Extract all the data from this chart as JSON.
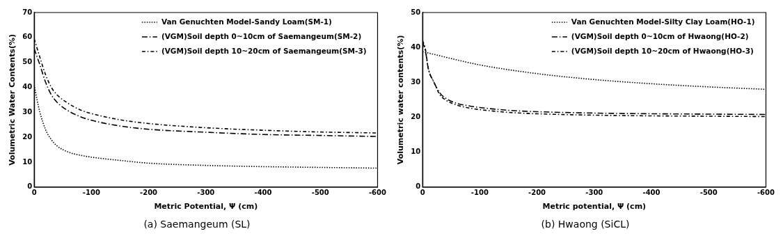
{
  "chart_data": [
    {
      "type": "line",
      "xlabel": "Metric Potential, Ψ (cm)",
      "ylabel": "Volumetric Water Contents(%)",
      "xlim": [
        0,
        -600
      ],
      "xticks": [
        0,
        -100,
        -200,
        -300,
        -400,
        -500,
        -600
      ],
      "ylim": [
        0,
        70
      ],
      "yticks": [
        0,
        10,
        20,
        30,
        40,
        50,
        60,
        70
      ],
      "grid": false,
      "legend": "top right",
      "marker": "none",
      "annotations": [
        "(a) Saemangeum (SL)"
      ],
      "series": [
        {
          "name": "Van Genuchten Model-Sandy Loam(SM-1)",
          "color": "#000000",
          "line_style": "dotted",
          "x": [
            0,
            -5,
            -10,
            -20,
            -30,
            -40,
            -60,
            -80,
            -100,
            -150,
            -200,
            -300,
            -400,
            -500,
            -600
          ],
          "values": [
            41,
            35,
            30,
            23,
            19,
            16.5,
            14,
            12.8,
            12,
            10.7,
            9.6,
            8.7,
            8.2,
            7.9,
            7.6
          ]
        },
        {
          "name": "(VGM)Soil depth 0~10cm of Saemangeum(SM-2)",
          "color": "#000000",
          "line_style": "dashed",
          "x": [
            0,
            -10,
            -20,
            -30,
            -40,
            -60,
            -80,
            -100,
            -150,
            -200,
            -300,
            -400,
            -500,
            -600
          ],
          "values": [
            55.5,
            49,
            42,
            37,
            34,
            30.5,
            28.3,
            26.8,
            24.5,
            23.2,
            22,
            21.1,
            20.7,
            20.3
          ]
        },
        {
          "name": "(VGM)Soil depth 10~20cm of Saemangeum(SM-3)",
          "color": "#000000",
          "line_style": "dashed",
          "x": [
            0,
            -10,
            -20,
            -30,
            -40,
            -60,
            -80,
            -100,
            -150,
            -200,
            -300,
            -400,
            -500,
            -600
          ],
          "values": [
            59.5,
            52,
            45,
            40,
            37,
            33.5,
            31,
            29.5,
            27,
            25.5,
            23.8,
            22.8,
            22.1,
            21.7
          ]
        }
      ]
    },
    {
      "type": "line",
      "xlabel": "Metric potential, Ψ (cm)",
      "ylabel": "Volumetric water contents(%)",
      "xlim": [
        0,
        -600
      ],
      "xticks": [
        0,
        -100,
        -200,
        -300,
        -400,
        -500,
        -600
      ],
      "ylim": [
        0,
        50
      ],
      "yticks": [
        0,
        10,
        20,
        30,
        40,
        50
      ],
      "grid": false,
      "legend": "top right",
      "marker": "none",
      "annotations": [
        "(b) Hwaong (SiCL)"
      ],
      "series": [
        {
          "name": "Van Genuchten Model-Silty Clay Loam(HO-1)",
          "color": "#000000",
          "line_style": "dotted",
          "x": [
            0,
            -100,
            -200,
            -300,
            -400,
            -500,
            -600
          ],
          "values": [
            38.8,
            35,
            32.5,
            30.8,
            29.6,
            28.7,
            28
          ]
        },
        {
          "name": "(VGM)Soil depth 0~10cm of Hwaong(HO-2)",
          "color": "#000000",
          "line_style": "dashed",
          "x": [
            0,
            -5,
            -10,
            -20,
            -30,
            -40,
            -60,
            -80,
            -100,
            -150,
            -200,
            -300,
            -400,
            -500,
            -600
          ],
          "values": [
            41.5,
            39,
            34,
            30,
            27,
            25.5,
            24,
            23.3,
            22.8,
            22,
            21.6,
            21.2,
            21,
            20.9,
            20.8
          ]
        },
        {
          "name": "(VGM)Soil depth 10~20cm of Hwaong(HO-3)",
          "color": "#000000",
          "line_style": "dashed",
          "x": [
            0,
            -5,
            -10,
            -20,
            -30,
            -40,
            -60,
            -80,
            -100,
            -150,
            -200,
            -300,
            -400,
            -500,
            -600
          ],
          "values": [
            42,
            39.5,
            34,
            30,
            26.5,
            25,
            23.5,
            22.7,
            22.2,
            21.4,
            21,
            20.6,
            20.4,
            20.3,
            20.2
          ]
        }
      ]
    }
  ]
}
